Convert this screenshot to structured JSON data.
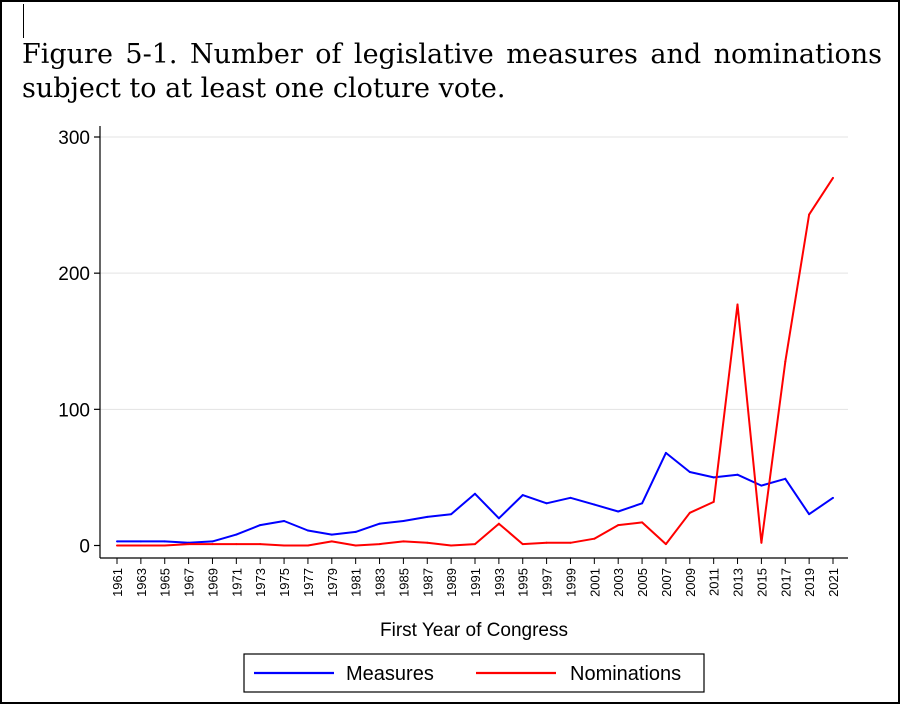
{
  "figure": {
    "title": "Figure 5-1. Number of legislative measures and nominations subject to at least one cloture vote."
  },
  "chart_data": {
    "type": "line",
    "title": "Figure 5-1. Number of legislative measures and nominations subject to at least one cloture vote.",
    "xlabel": "First Year of Congress",
    "ylabel": "",
    "x": [
      1961,
      1963,
      1965,
      1967,
      1969,
      1971,
      1973,
      1975,
      1977,
      1979,
      1981,
      1983,
      1985,
      1987,
      1989,
      1991,
      1993,
      1995,
      1997,
      1999,
      2001,
      2003,
      2005,
      2007,
      2009,
      2011,
      2013,
      2015,
      2017,
      2019,
      2021
    ],
    "yticks": [
      0,
      100,
      200,
      300
    ],
    "ylim": [
      0,
      300
    ],
    "grid": true,
    "legend_position": "bottom",
    "series": [
      {
        "name": "Measures",
        "color": "#0000ff",
        "values": [
          3,
          3,
          3,
          2,
          3,
          8,
          15,
          18,
          11,
          8,
          10,
          16,
          18,
          21,
          23,
          38,
          20,
          37,
          31,
          35,
          30,
          25,
          31,
          68,
          54,
          50,
          52,
          44,
          49,
          23,
          35
        ]
      },
      {
        "name": "Nominations",
        "color": "#ff0000",
        "values": [
          0,
          0,
          0,
          1,
          1,
          1,
          1,
          0,
          0,
          3,
          0,
          1,
          3,
          2,
          0,
          1,
          16,
          1,
          2,
          2,
          5,
          15,
          17,
          1,
          24,
          32,
          177,
          2,
          135,
          243,
          270
        ]
      }
    ]
  }
}
